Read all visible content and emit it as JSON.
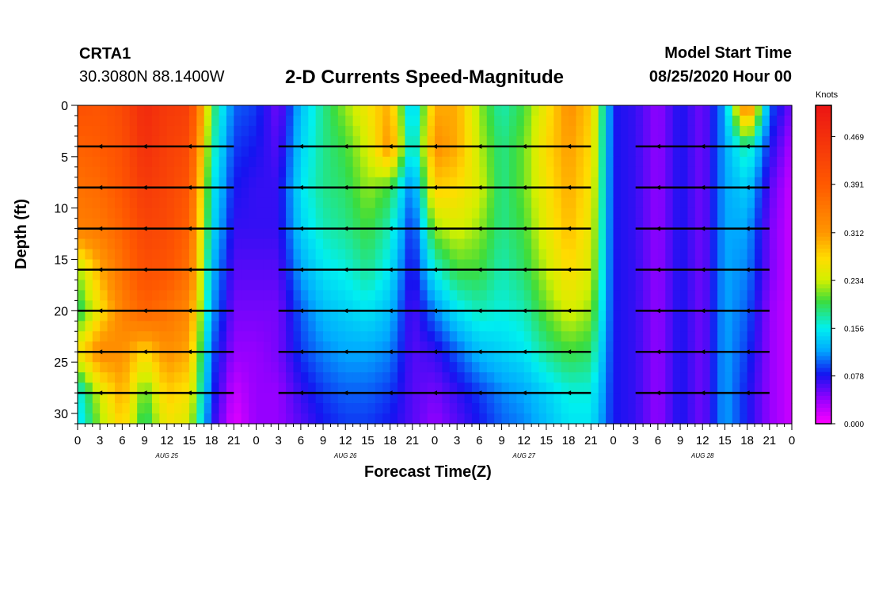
{
  "header": {
    "station": "CRTA1",
    "coordinates": "30.3080N 88.1400W",
    "title": "2-D Currents Speed-Magnitude",
    "model_start_label": "Model Start Time",
    "model_start_value": "08/25/2020 Hour 00"
  },
  "chart_data": {
    "type": "heatmap",
    "title": "2-D Currents Speed-Magnitude",
    "xlabel": "Forecast Time(Z)",
    "ylabel": "Depth (ft)",
    "x_ticks": [
      "0",
      "3",
      "6",
      "9",
      "12",
      "15",
      "18",
      "21",
      "0",
      "3",
      "6",
      "9",
      "12",
      "15",
      "18",
      "21",
      "0",
      "3",
      "6",
      "9",
      "12",
      "15",
      "18",
      "21",
      "0",
      "3",
      "6",
      "9",
      "12",
      "15",
      "18",
      "21",
      "0"
    ],
    "x_range_hours": [
      0,
      96
    ],
    "day_labels": [
      {
        "label": "AUG 25",
        "hour": 12
      },
      {
        "label": "AUG 26",
        "hour": 36
      },
      {
        "label": "AUG 27",
        "hour": 60
      },
      {
        "label": "AUG 28",
        "hour": 84
      }
    ],
    "y_ticks": [
      0,
      5,
      10,
      15,
      20,
      25,
      30
    ],
    "y_range_ft": [
      0,
      31
    ],
    "y_inverted": true,
    "colorbar": {
      "unit": "Knots",
      "ticks": [
        "0.469",
        "0.391",
        "0.312",
        "0.234",
        "0.156",
        "0.078",
        "0.000"
      ],
      "range": [
        0,
        0.52
      ]
    },
    "speed_grid": {
      "depths_ft": [
        0,
        4,
        8,
        12,
        16,
        20,
        24,
        28,
        31
      ],
      "hours": [
        0,
        3,
        6,
        9,
        12,
        15,
        18,
        21,
        24,
        27,
        30,
        33,
        36,
        39,
        42,
        45,
        48,
        51,
        54,
        57,
        60,
        63,
        66,
        69,
        72,
        75,
        78,
        81,
        84,
        87,
        90,
        93,
        96
      ],
      "knots": [
        [
          0.41,
          0.4,
          0.42,
          0.48,
          0.45,
          0.44,
          0.2,
          0.1,
          0.09,
          0.05,
          0.13,
          0.18,
          0.22,
          0.26,
          0.3,
          0.12,
          0.3,
          0.3,
          0.22,
          0.17,
          0.2,
          0.26,
          0.32,
          0.28,
          0.08,
          0.07,
          0.04,
          0.08,
          0.05,
          0.12,
          0.36,
          0.1,
          0.05
        ],
        [
          0.38,
          0.39,
          0.41,
          0.47,
          0.44,
          0.42,
          0.18,
          0.09,
          0.08,
          0.06,
          0.14,
          0.18,
          0.2,
          0.24,
          0.32,
          0.14,
          0.32,
          0.3,
          0.23,
          0.18,
          0.21,
          0.27,
          0.31,
          0.27,
          0.08,
          0.07,
          0.04,
          0.08,
          0.05,
          0.12,
          0.18,
          0.08,
          0.03
        ],
        [
          0.36,
          0.37,
          0.4,
          0.45,
          0.43,
          0.4,
          0.16,
          0.08,
          0.07,
          0.07,
          0.15,
          0.18,
          0.19,
          0.22,
          0.2,
          0.1,
          0.28,
          0.27,
          0.24,
          0.18,
          0.21,
          0.26,
          0.3,
          0.26,
          0.08,
          0.07,
          0.04,
          0.08,
          0.05,
          0.12,
          0.14,
          0.06,
          0.02
        ],
        [
          0.34,
          0.35,
          0.38,
          0.43,
          0.42,
          0.38,
          0.15,
          0.07,
          0.07,
          0.07,
          0.14,
          0.17,
          0.18,
          0.2,
          0.17,
          0.08,
          0.22,
          0.24,
          0.22,
          0.18,
          0.2,
          0.25,
          0.29,
          0.25,
          0.08,
          0.07,
          0.04,
          0.08,
          0.05,
          0.12,
          0.12,
          0.05,
          0.02
        ],
        [
          0.22,
          0.3,
          0.36,
          0.41,
          0.4,
          0.36,
          0.13,
          0.06,
          0.06,
          0.06,
          0.12,
          0.15,
          0.16,
          0.18,
          0.15,
          0.07,
          0.16,
          0.2,
          0.2,
          0.17,
          0.19,
          0.23,
          0.27,
          0.24,
          0.08,
          0.07,
          0.04,
          0.08,
          0.05,
          0.12,
          0.11,
          0.05,
          0.02
        ],
        [
          0.18,
          0.26,
          0.34,
          0.38,
          0.36,
          0.33,
          0.12,
          0.05,
          0.05,
          0.05,
          0.1,
          0.13,
          0.14,
          0.15,
          0.13,
          0.06,
          0.11,
          0.15,
          0.17,
          0.16,
          0.17,
          0.21,
          0.24,
          0.22,
          0.08,
          0.07,
          0.04,
          0.08,
          0.05,
          0.12,
          0.1,
          0.04,
          0.02
        ],
        [
          0.26,
          0.33,
          0.32,
          0.27,
          0.32,
          0.3,
          0.1,
          0.04,
          0.04,
          0.05,
          0.09,
          0.11,
          0.12,
          0.12,
          0.11,
          0.06,
          0.07,
          0.1,
          0.13,
          0.14,
          0.15,
          0.18,
          0.2,
          0.19,
          0.08,
          0.07,
          0.04,
          0.08,
          0.05,
          0.12,
          0.09,
          0.04,
          0.02
        ],
        [
          0.15,
          0.24,
          0.3,
          0.2,
          0.28,
          0.26,
          0.09,
          0.02,
          0.04,
          0.04,
          0.07,
          0.09,
          0.1,
          0.1,
          0.09,
          0.06,
          0.05,
          0.07,
          0.09,
          0.11,
          0.12,
          0.14,
          0.16,
          0.16,
          0.08,
          0.07,
          0.04,
          0.08,
          0.05,
          0.12,
          0.08,
          0.04,
          0.02
        ],
        [
          0.14,
          0.22,
          0.28,
          0.18,
          0.26,
          0.24,
          0.08,
          0.01,
          0.04,
          0.04,
          0.06,
          0.08,
          0.09,
          0.09,
          0.08,
          0.06,
          0.04,
          0.06,
          0.08,
          0.1,
          0.11,
          0.13,
          0.15,
          0.15,
          0.08,
          0.07,
          0.04,
          0.08,
          0.05,
          0.12,
          0.08,
          0.04,
          0.02
        ]
      ]
    },
    "vector_rows_ft": [
      4,
      8,
      12,
      16,
      20,
      24,
      28
    ],
    "vector_direction_note": "current vectors point mostly west (leftward) in periods 0-21h, 27-69h, 75-93h"
  }
}
